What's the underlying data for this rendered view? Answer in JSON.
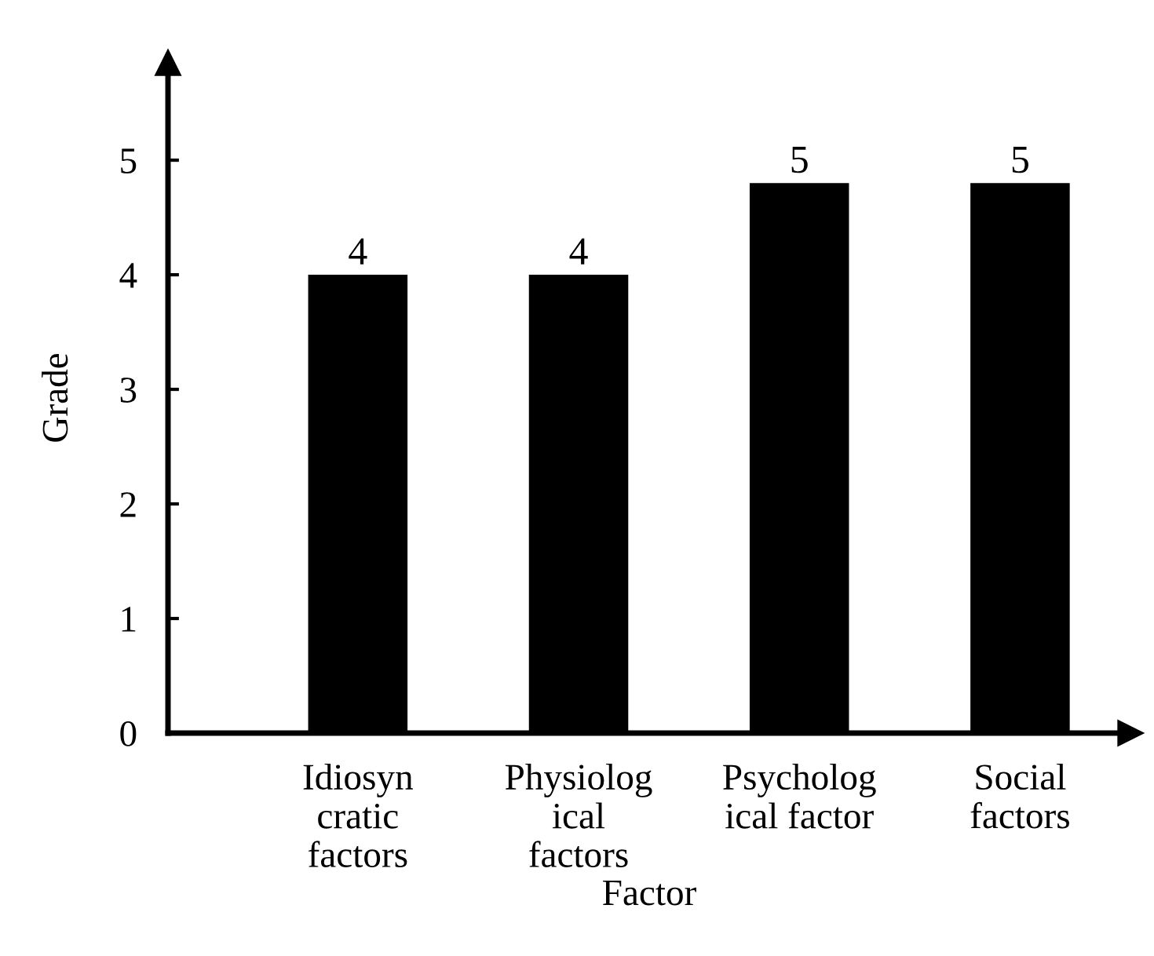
{
  "chart_data": {
    "type": "bar",
    "xlabel": "Factor",
    "ylabel": "Grade",
    "categories": [
      "Idiosyn\ncratic\nfactors",
      "Physiolog\nical\nfactors",
      "Psycholog\nical factor",
      "Social\nfactors"
    ],
    "values": [
      4,
      4,
      4.8,
      4.8
    ],
    "value_labels": [
      "4",
      "4",
      "5",
      "5"
    ],
    "color": "#000000",
    "ylim": [
      0,
      5.85
    ],
    "yticks": [
      0,
      1,
      2,
      3,
      4,
      5
    ],
    "grid": false,
    "legend": false
  }
}
